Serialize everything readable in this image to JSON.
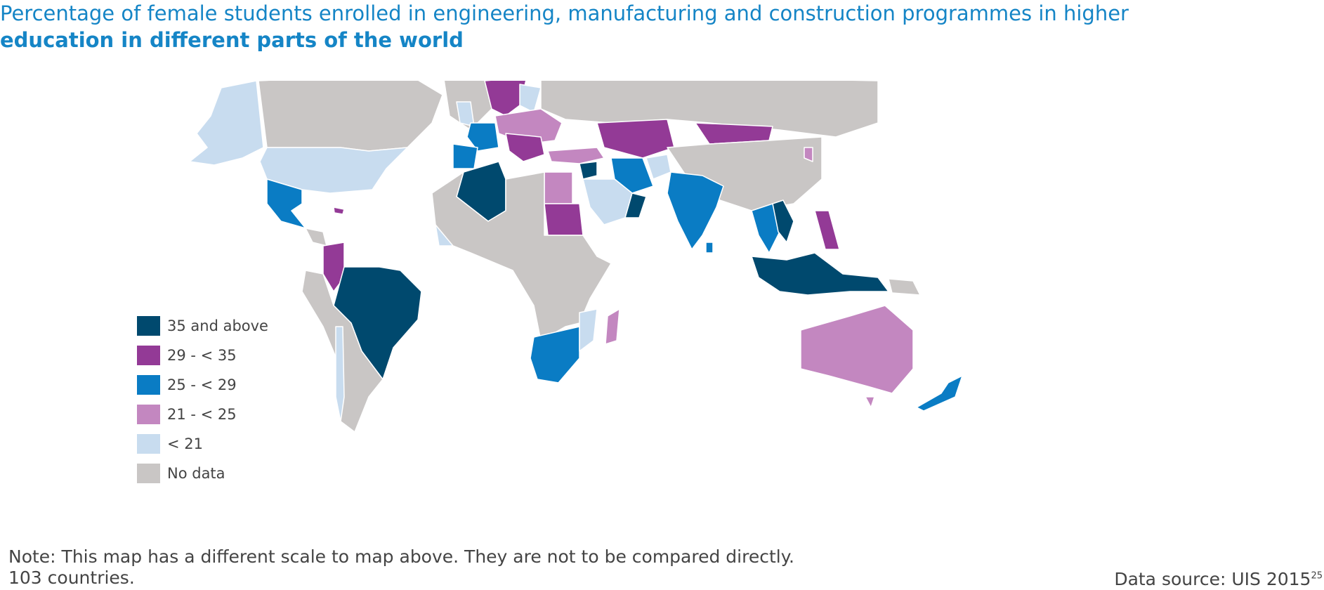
{
  "title": {
    "line1": "Percentage of female students enrolled in engineering, manufacturing and construction programmes in higher",
    "line2": "education in different parts of the world"
  },
  "legend": [
    {
      "label": "35 and above",
      "color": "#00496e"
    },
    {
      "label": "29 - < 35",
      "color": "#933a96"
    },
    {
      "label": "25 - < 29",
      "color": "#0a7cc4"
    },
    {
      "label": "21 - < 25",
      "color": "#c387c0"
    },
    {
      "label": "< 21",
      "color": "#c8dcef"
    },
    {
      "label": "No data",
      "color": "#c9c6c5"
    }
  ],
  "note": {
    "line1": "Note: This map has a different scale to map above. They are not to be compared directly.",
    "line2": "103  countries."
  },
  "source": {
    "text": "Data source: UIS 2015",
    "footnote": "25"
  },
  "colors": {
    "title": "#1585c6",
    "ocean": "#ffffff",
    "border": "#ffffff"
  }
}
